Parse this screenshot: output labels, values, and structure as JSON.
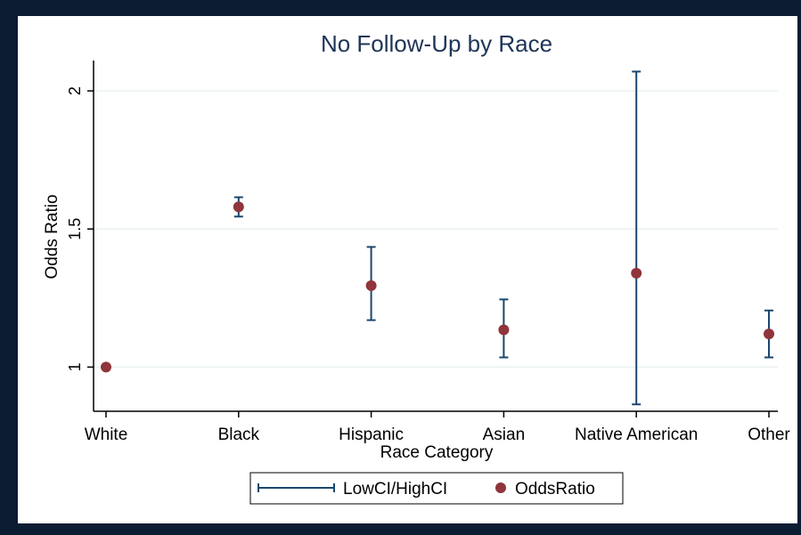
{
  "chart_data": {
    "type": "scatter",
    "title": "No Follow-Up by Race",
    "xlabel": "Race Category",
    "ylabel": "Odds Ratio",
    "categories": [
      "White",
      "Black",
      "Hispanic",
      "Asian",
      "Native American",
      "Other"
    ],
    "ylim": [
      0.84,
      2.11
    ],
    "yticks": [
      1,
      1.5,
      2
    ],
    "ytick_labels": [
      "1",
      "1.5",
      "2"
    ],
    "grid": true,
    "legend_position": "bottom",
    "series": [
      {
        "name": "LowCI/HighCI",
        "kind": "errorbar",
        "low": [
          null,
          1.545,
          1.17,
          1.035,
          0.865,
          1.035
        ],
        "high": [
          null,
          1.615,
          1.435,
          1.245,
          2.07,
          1.205
        ]
      },
      {
        "name": "OddsRatio",
        "kind": "point",
        "values": [
          1.0,
          1.58,
          1.295,
          1.135,
          1.34,
          1.12
        ]
      }
    ],
    "colors": {
      "errorbar": "#1a476f",
      "point": "#90353b",
      "grid": "#eaf2f3",
      "axis": "#000000",
      "title": "#1e3557"
    }
  }
}
